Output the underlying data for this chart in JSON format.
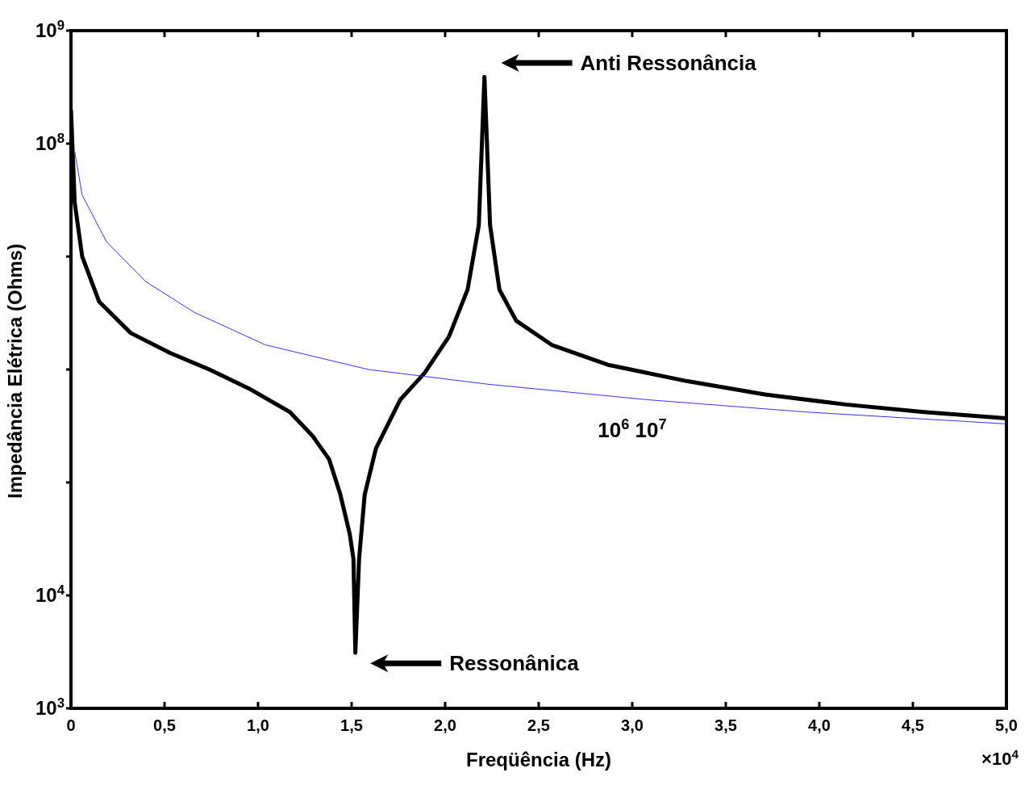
{
  "chart_data": {
    "type": "line",
    "xlabel": "Freqüência (Hz)",
    "ylabel": "Impedância Elétrica (Ohms)",
    "log": "y",
    "grid": false,
    "marker": "none",
    "line_style": "solid",
    "xlim": [
      0,
      5
    ],
    "xticks": [
      0,
      {
        "value": 0.5,
        "label": "0,5"
      },
      {
        "value": 1,
        "label": "1,0"
      },
      {
        "value": 1.5,
        "label": "1,5"
      },
      {
        "value": 2,
        "label": "2,0"
      },
      {
        "value": 2.5,
        "label": "2,5"
      },
      {
        "value": 3,
        "label": "3,0"
      },
      {
        "value": 3.5,
        "label": "3,5"
      },
      {
        "value": 4,
        "label": "4,0"
      },
      {
        "value": 4.5,
        "label": "4,5"
      },
      {
        "value": 5,
        "label": "5,0"
      }
    ],
    "ylim": [
      1000,
      1000000000
    ],
    "yticks": [
      {
        "value": 1000,
        "label": "10$^{3}$"
      },
      {
        "value": 10000,
        "label": "10$^{4}$"
      },
      {
        "value": 100000,
        "label": null
      },
      {
        "value": 1000000,
        "label": null
      },
      {
        "value": 10000000,
        "label": null
      },
      {
        "value": 100000000,
        "label": "10$^{8}$"
      },
      {
        "value": 1000000000,
        "label": "10$^{9}$"
      }
    ],
    "series": [
      {
        "color": "#000000",
        "x": [
          0,
          0.02,
          0.06,
          0.15,
          0.32,
          0.53,
          0.74,
          0.95,
          1.17,
          1.29,
          1.38,
          1.44,
          1.49,
          1.51,
          1.52,
          1.54,
          1.57,
          1.63,
          1.76,
          1.89,
          2.02,
          2.12,
          2.18,
          2.21,
          2.24,
          2.29,
          2.38,
          2.57,
          2.87,
          3.29,
          3.71,
          4.14,
          4.56,
          5.0
        ],
        "values": [
          200000000,
          30000000,
          10000000,
          4000000,
          2100000,
          1400000,
          1000000,
          680000,
          420000,
          260000,
          160000,
          78000,
          35000,
          21000,
          3100,
          21000,
          78000,
          200000,
          540000,
          930000,
          1950000,
          5100000,
          19000000,
          390000000,
          19000000,
          5100000,
          2700000,
          1650000,
          1100000,
          790000,
          600000,
          490000,
          420000,
          370000
        ]
      },
      {
        "color": "#3333ff",
        "x": [
          0.02,
          0.06,
          0.19,
          0.4,
          0.66,
          1.04,
          1.59,
          2.23,
          3.08,
          3.93,
          5.0
        ],
        "values": [
          85000000,
          35000000,
          13500000,
          6000000,
          3200000,
          1650000,
          1000000,
          740000,
          540000,
          420000,
          330000
        ]
      }
    ],
    "annotations": [
      "Anti Ressonância",
      "Ressonânica",
      "10$^{6}$ 10$^{7}$",
      "×10$^{4}$"
    ]
  }
}
